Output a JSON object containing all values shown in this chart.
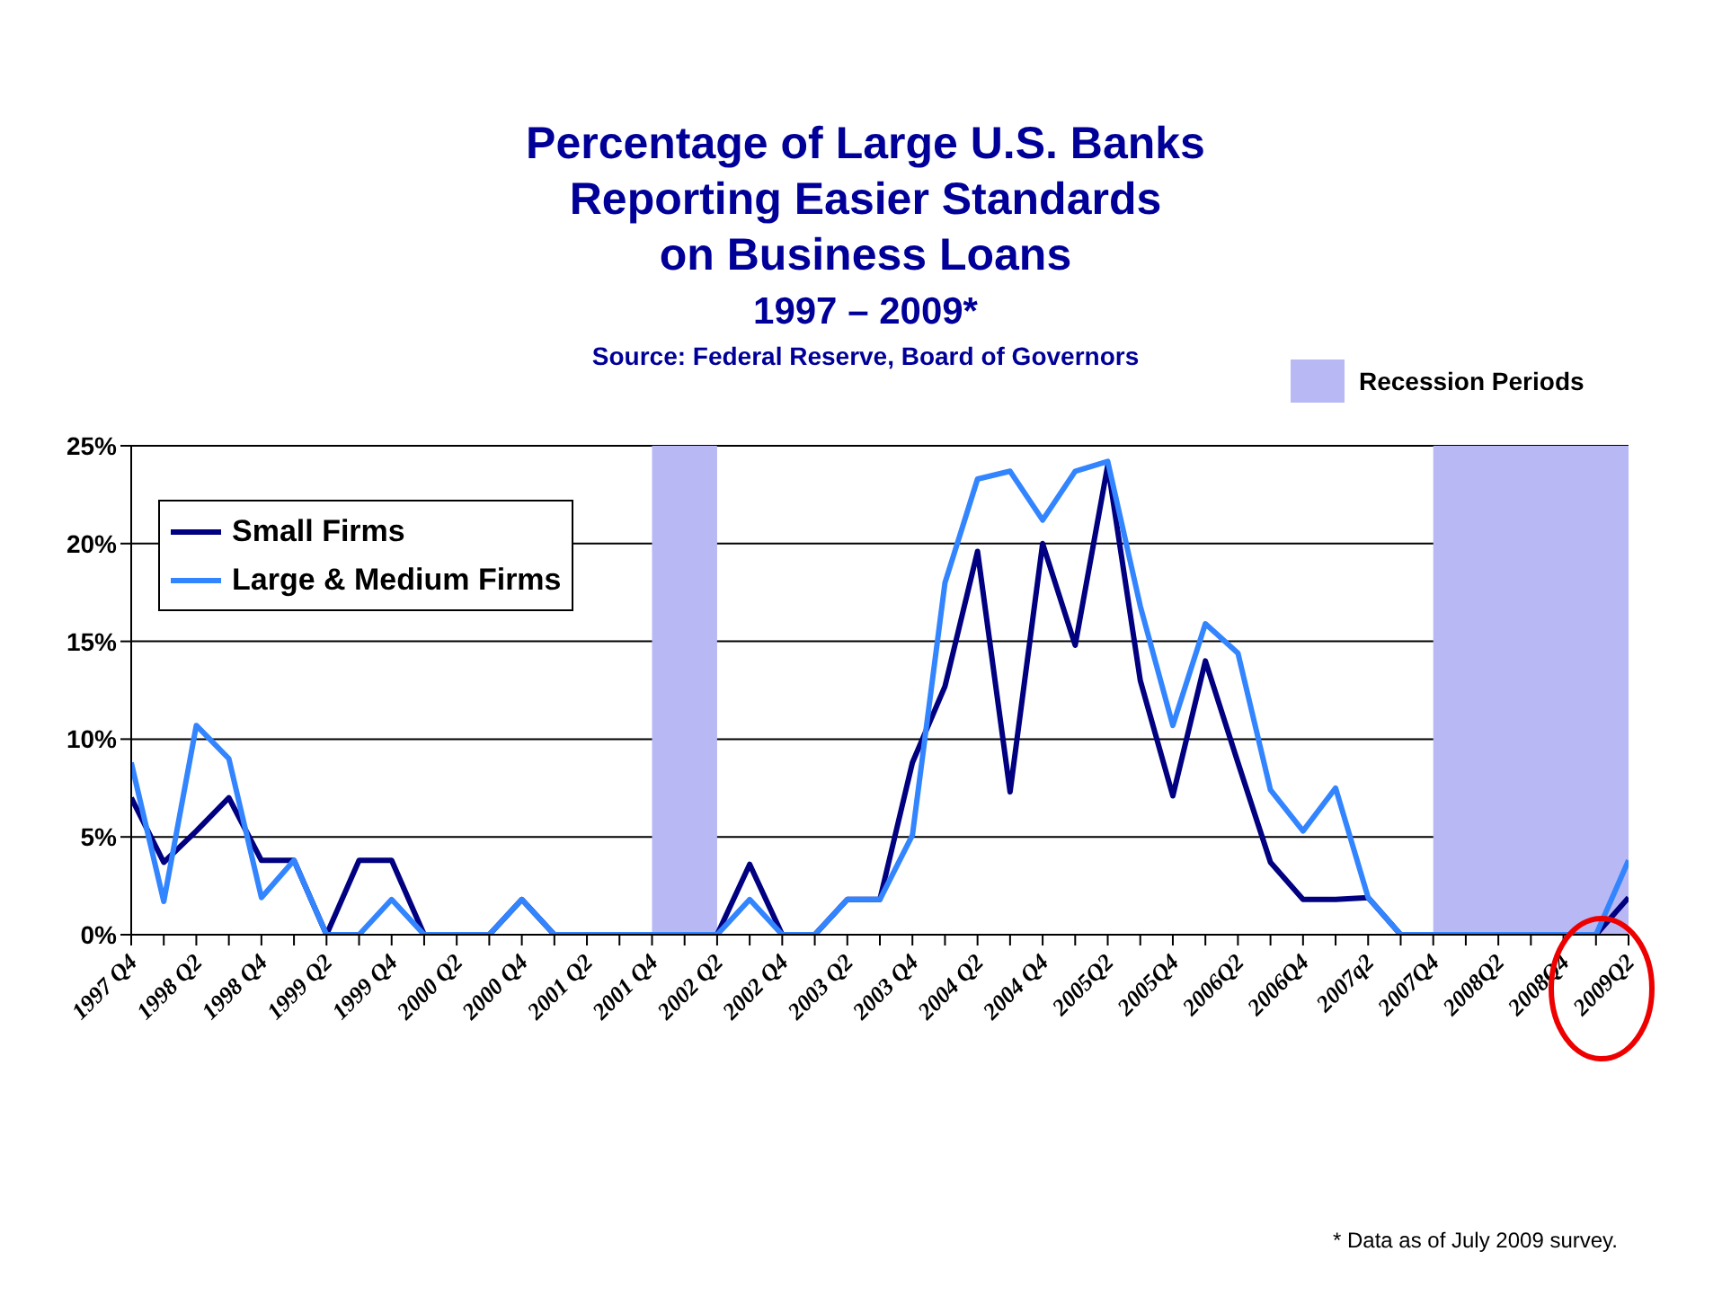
{
  "chart_data": {
    "type": "line",
    "title": "Percentage of Large U.S. Banks\nReporting Easier Standards\non Business Loans\n1997 – 2009*",
    "subtitle": "Source: Federal Reserve, Board of Governors",
    "annotations": [
      "* Data as of July 2009 survey."
    ],
    "categories": [
      "1997 Q4",
      null,
      "1998 Q2",
      null,
      "1998 Q4",
      null,
      "1999 Q2",
      null,
      "1999 Q4",
      null,
      "2000 Q2",
      null,
      "2000 Q4",
      null,
      "2001 Q2",
      null,
      "2001 Q4",
      null,
      "2002 Q2",
      null,
      "2002 Q4",
      null,
      "2003 Q2",
      null,
      "2003 Q4",
      null,
      "2004 Q2",
      null,
      "2004 Q4",
      null,
      "2005Q2",
      null,
      "2005Q4",
      null,
      "2006Q2",
      null,
      "2006Q4",
      null,
      "2007q2",
      null,
      "2007Q4",
      null,
      "2008Q2",
      null,
      "2008Q4",
      null,
      "2009Q2"
    ],
    "series": [
      {
        "name": "Small Firms",
        "color": "#000080",
        "values": [
          7.0,
          3.7,
          5.3,
          7.0,
          3.8,
          3.8,
          0,
          3.8,
          3.8,
          0,
          0,
          0,
          1.8,
          0,
          0,
          0,
          0,
          0,
          0,
          3.6,
          0,
          0,
          1.8,
          1.8,
          8.8,
          12.7,
          19.6,
          7.3,
          20.0,
          14.8,
          24.0,
          13.0,
          7.1,
          14.0,
          8.8,
          3.7,
          1.8,
          1.8,
          1.9,
          0,
          0,
          0,
          0,
          0,
          0,
          0,
          1.9
        ]
      },
      {
        "name": "Large & Medium Firms",
        "color": "#3385ff",
        "values": [
          8.8,
          1.7,
          10.7,
          9.0,
          1.9,
          3.8,
          0,
          0,
          1.8,
          0,
          0,
          0,
          1.8,
          0,
          0,
          0,
          0,
          0,
          0,
          1.8,
          0,
          0,
          1.8,
          1.8,
          5.1,
          18.0,
          23.3,
          23.7,
          21.2,
          23.7,
          24.2,
          16.8,
          10.7,
          15.9,
          14.4,
          7.4,
          5.3,
          7.5,
          1.9,
          0,
          0,
          0,
          0,
          0,
          0,
          0,
          3.8
        ]
      }
    ],
    "ylim": [
      0,
      25
    ],
    "yticks": [
      {
        "value": 0,
        "label": "0%"
      },
      {
        "value": 5,
        "label": "5%"
      },
      {
        "value": 10,
        "label": "10%"
      },
      {
        "value": 15,
        "label": "15%"
      },
      {
        "value": 20,
        "label": "20%"
      },
      {
        "value": 25,
        "label": "25%"
      }
    ],
    "grid": "y",
    "legend": "top left",
    "bands": [
      {
        "axis": "x",
        "from": "2001 Q4",
        "to": "2002 Q2",
        "label": "Recession Periods",
        "color": "#b8b8f5"
      },
      {
        "axis": "x",
        "from": "2007Q4",
        "to": "2009Q2",
        "color": "#b8b8f5"
      }
    ]
  }
}
